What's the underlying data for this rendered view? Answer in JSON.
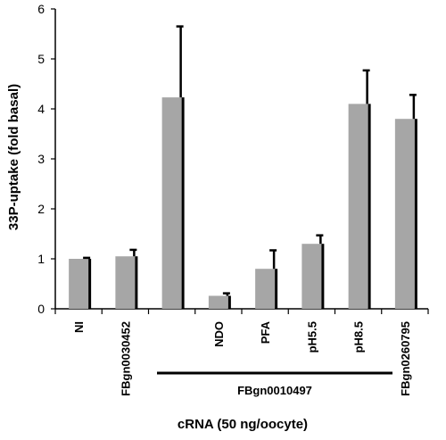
{
  "chart_data": {
    "type": "bar",
    "categories": [
      "NI",
      "FBgn0030452",
      "",
      "NDO",
      "PFA",
      "pH5.5",
      "pH8.5",
      "FBgn0260795"
    ],
    "values": [
      1.0,
      1.05,
      4.23,
      0.26,
      0.8,
      1.3,
      4.1,
      3.8
    ],
    "errors": [
      0.02,
      0.13,
      1.42,
      0.05,
      0.37,
      0.17,
      0.67,
      0.48
    ],
    "ylim": [
      0,
      6
    ],
    "yticks": [
      "0",
      "1",
      "2",
      "3",
      "4",
      "5",
      "6"
    ],
    "ylabel": "33P-uptake (fold basal)",
    "xlabel": "cRNA (50 ng/oocyte)",
    "group_label": "FBgn0010497",
    "grid": false,
    "bar_color": "#a6a6a6",
    "error_color": "#000000"
  }
}
